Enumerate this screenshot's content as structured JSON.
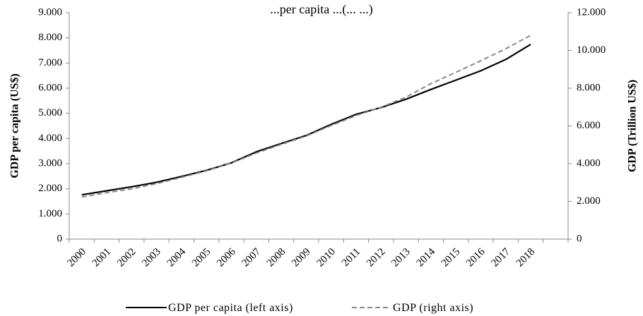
{
  "chart_data": {
    "type": "line",
    "title": "...per capita ...(... ...)",
    "x": [
      "2000",
      "2001",
      "2002",
      "2003",
      "2004",
      "2005",
      "2006",
      "2007",
      "2008",
      "2009",
      "2010",
      "2011",
      "2012",
      "2013",
      "2014",
      "2015",
      "2016",
      "2017",
      "2018"
    ],
    "series": [
      {
        "name": "GDP per capita (left axis)",
        "axis": "left",
        "style": "solid",
        "color": "#000000",
        "values": [
          1760,
          1920,
          2080,
          2260,
          2490,
          2730,
          3030,
          3470,
          3800,
          4120,
          4560,
          4960,
          5230,
          5560,
          5950,
          6320,
          6690,
          7140,
          7740
        ]
      },
      {
        "name": "GDP  (right axis)",
        "axis": "right",
        "style": "dashed",
        "color": "#888888",
        "values": [
          2230,
          2460,
          2670,
          2940,
          3270,
          3620,
          4030,
          4560,
          5020,
          5460,
          6020,
          6550,
          6990,
          7520,
          8240,
          8840,
          9450,
          10090,
          10800
        ]
      }
    ],
    "ylabel_left": "GDP per capita (US$)",
    "ylabel_right": "GDP  (Trillion US$)",
    "ylim_left": [
      0,
      9000
    ],
    "ylim_right": [
      0,
      12000
    ],
    "yticks_left": [
      "0",
      "1.000",
      "2.000",
      "3.000",
      "4.000",
      "5.000",
      "6.000",
      "7.000",
      "8.000",
      "9.000"
    ],
    "yticks_right": [
      "0",
      "2.000",
      "4.000",
      "6.000",
      "8.000",
      "10.000",
      "12.000"
    ],
    "grid": false,
    "legend_position": "bottom"
  }
}
